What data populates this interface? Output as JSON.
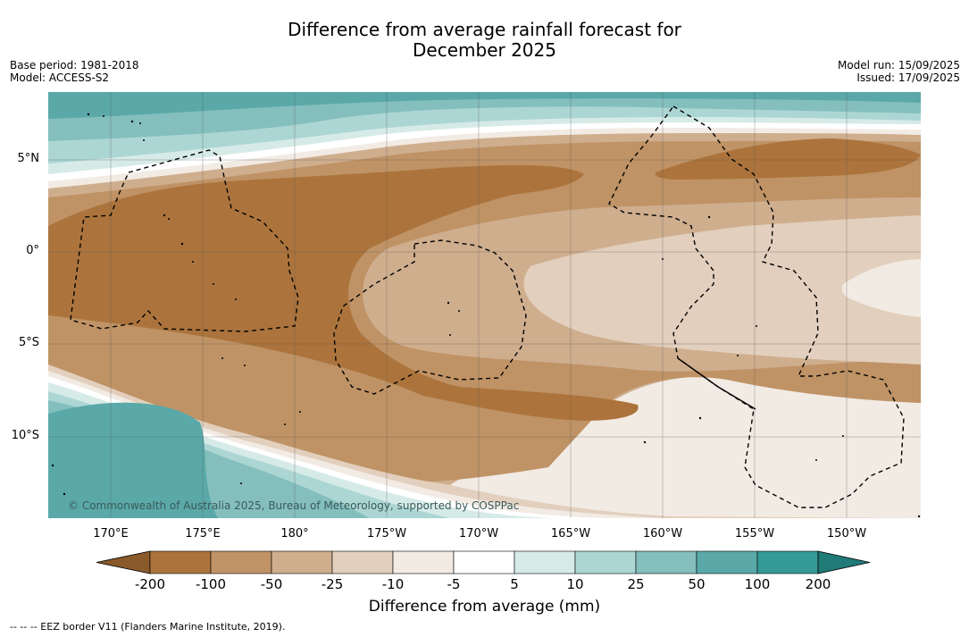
{
  "header": {
    "title_line1": "Difference from average rainfall forecast for",
    "title_line2": "December 2025",
    "base_period": "Base period: 1981-2018",
    "model": "Model: ACCESS-S2",
    "model_run": "Model run: 15/09/2025",
    "issued": "Issued: 17/09/2025"
  },
  "map": {
    "lat_labels": [
      "5°N",
      "0°",
      "5°S",
      "10°S"
    ],
    "lon_labels": [
      "170°E",
      "175°E",
      "180°",
      "175°W",
      "170°W",
      "165°W",
      "160°W",
      "155°W",
      "150°W"
    ],
    "copyright": "© Commonwealth of Australia 2025, Bureau of Meteorology, supported by COSPPac"
  },
  "colorbar": {
    "labels": [
      "-200",
      "-100",
      "-50",
      "-25",
      "-10",
      "-5",
      "5",
      "10",
      "25",
      "50",
      "100",
      "200"
    ],
    "colors": [
      "#8b5a2b",
      "#ac743c",
      "#bf9366",
      "#cfae8e",
      "#e2cfbd",
      "#f2ebe4",
      "#ffffff",
      "#d6ebe8",
      "#acd6d4",
      "#84bfbd",
      "#5aa9a8",
      "#359a97",
      "#1f7a78"
    ],
    "title": "Difference from average (mm)"
  },
  "footer": {
    "eez_note": "--  --  -- EEZ border V11 (Flanders Marine Institute, 2019)."
  }
}
